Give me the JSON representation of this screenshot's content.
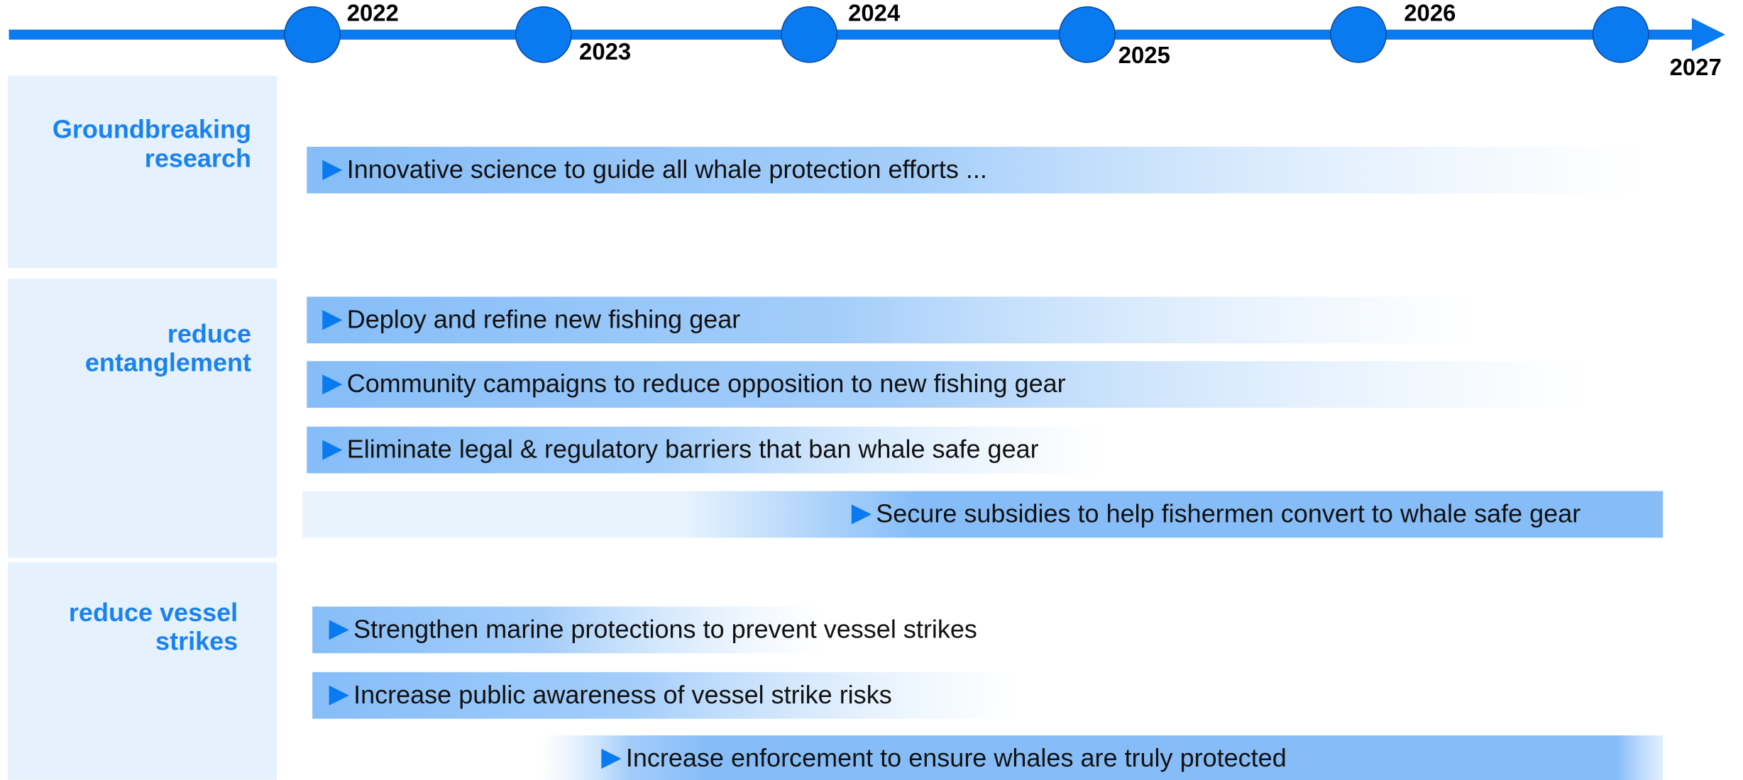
{
  "timeline": {
    "years": [
      "2022",
      "2023",
      "2024",
      "2025",
      "2026",
      "2027"
    ]
  },
  "groups": [
    {
      "label": [
        "Groundbreaking",
        "research"
      ],
      "items": [
        "Innovative science to guide all whale protection efforts ..."
      ]
    },
    {
      "label": [
        "reduce",
        "entanglement"
      ],
      "items": [
        "Deploy and refine new fishing gear",
        "Community campaigns to reduce opposition to new fishing gear",
        "Eliminate legal & regulatory barriers that ban whale safe gear",
        "Secure subsidies to help fishermen convert to whale safe gear"
      ]
    },
    {
      "label": [
        "reduce vessel",
        "strikes"
      ],
      "items": [
        "Strengthen marine protections to prevent vessel strikes",
        "Increase public awareness of vessel strike risks",
        "Increase enforcement to ensure whales are truly protected"
      ]
    }
  ]
}
